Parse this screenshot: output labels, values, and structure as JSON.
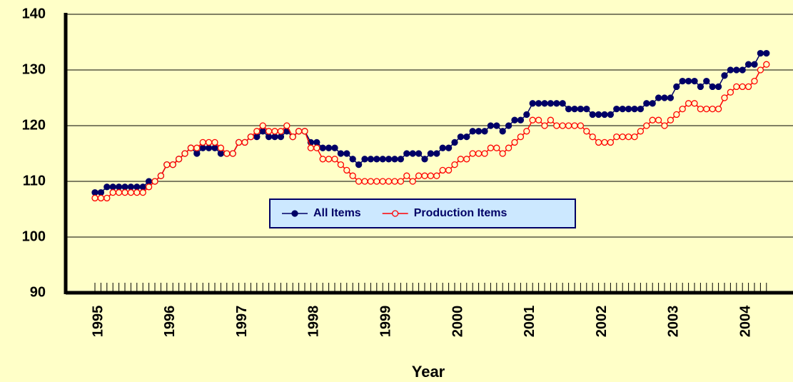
{
  "chart_data": {
    "type": "line",
    "x_label": "Year",
    "categories": [
      "1995",
      null,
      null,
      null,
      null,
      null,
      null,
      null,
      null,
      null,
      null,
      null,
      "1996",
      null,
      null,
      null,
      null,
      null,
      null,
      null,
      null,
      null,
      null,
      null,
      "1997",
      null,
      null,
      null,
      null,
      null,
      null,
      null,
      null,
      null,
      null,
      null,
      "1998",
      null,
      null,
      null,
      null,
      null,
      null,
      null,
      null,
      null,
      null,
      null,
      "1999",
      null,
      null,
      null,
      null,
      null,
      null,
      null,
      null,
      null,
      null,
      null,
      "2000",
      null,
      null,
      null,
      null,
      null,
      null,
      null,
      null,
      null,
      null,
      null,
      "2001",
      null,
      null,
      null,
      null,
      null,
      null,
      null,
      null,
      null,
      null,
      null,
      "2002",
      null,
      null,
      null,
      null,
      null,
      null,
      null,
      null,
      null,
      null,
      null,
      "2003",
      null,
      null,
      null,
      null,
      null,
      null,
      null,
      null,
      null,
      null,
      null,
      "2004",
      null,
      null,
      null,
      null
    ],
    "series": [
      {
        "name": "All Items",
        "color": "#000066",
        "marker": "filled",
        "values": [
          108,
          108,
          109,
          109,
          109,
          109,
          109,
          109,
          109,
          110,
          110,
          111,
          113,
          113,
          114,
          115,
          116,
          115,
          116,
          116,
          116,
          115,
          115,
          115,
          117,
          117,
          118,
          118,
          119,
          118,
          118,
          118,
          119,
          118,
          119,
          119,
          117,
          117,
          116,
          116,
          116,
          115,
          115,
          114,
          113,
          114,
          114,
          114,
          114,
          114,
          114,
          114,
          115,
          115,
          115,
          114,
          115,
          115,
          116,
          116,
          117,
          118,
          118,
          119,
          119,
          119,
          120,
          120,
          119,
          120,
          121,
          121,
          122,
          124,
          124,
          124,
          124,
          124,
          124,
          123,
          123,
          123,
          123,
          122,
          122,
          122,
          122,
          123,
          123,
          123,
          123,
          123,
          124,
          124,
          125,
          125,
          125,
          127,
          128,
          128,
          128,
          127,
          128,
          127,
          127,
          129,
          130,
          130,
          130,
          131,
          131,
          133,
          133
        ]
      },
      {
        "name": "Production Items",
        "color": "#ff0000",
        "marker": "open",
        "values": [
          107,
          107,
          107,
          108,
          108,
          108,
          108,
          108,
          108,
          109,
          110,
          111,
          113,
          113,
          114,
          115,
          116,
          116,
          117,
          117,
          117,
          116,
          115,
          115,
          117,
          117,
          118,
          119,
          120,
          119,
          119,
          119,
          120,
          118,
          119,
          119,
          116,
          116,
          114,
          114,
          114,
          113,
          112,
          111,
          110,
          110,
          110,
          110,
          110,
          110,
          110,
          110,
          111,
          110,
          111,
          111,
          111,
          111,
          112,
          112,
          113,
          114,
          114,
          115,
          115,
          115,
          116,
          116,
          115,
          116,
          117,
          118,
          119,
          121,
          121,
          120,
          121,
          120,
          120,
          120,
          120,
          120,
          119,
          118,
          117,
          117,
          117,
          118,
          118,
          118,
          118,
          119,
          120,
          121,
          121,
          120,
          121,
          122,
          123,
          124,
          124,
          123,
          123,
          123,
          123,
          125,
          126,
          127,
          127,
          127,
          128,
          130,
          131
        ]
      }
    ],
    "ylim": [
      90,
      140
    ],
    "yticks": [
      90,
      100,
      110,
      120,
      130,
      140
    ],
    "grid": true
  }
}
